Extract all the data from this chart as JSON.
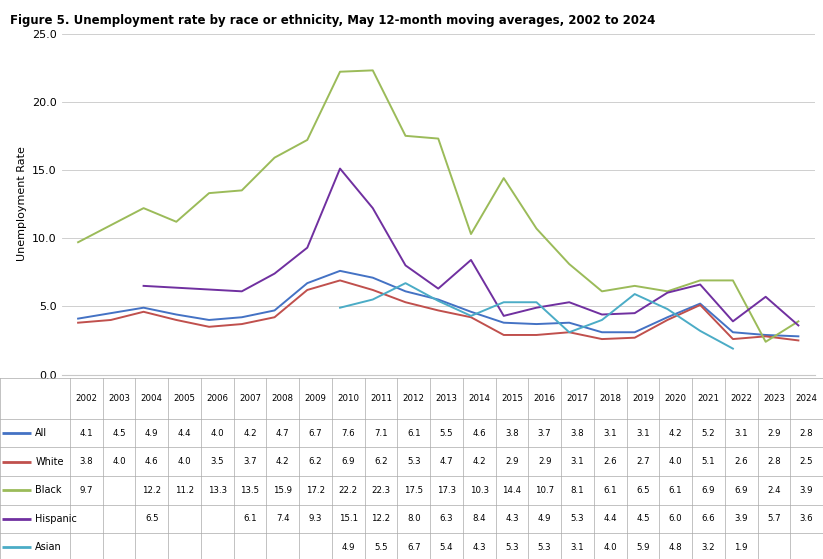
{
  "title": "Figure 5. Unemployment rate by race or ethnicity, May 12-month moving averages, 2002 to 2024",
  "ylabel": "Unemployment Rate",
  "years": [
    2002,
    2003,
    2004,
    2005,
    2006,
    2007,
    2008,
    2009,
    2010,
    2011,
    2012,
    2013,
    2014,
    2015,
    2016,
    2017,
    2018,
    2019,
    2020,
    2021,
    2022,
    2023,
    2024
  ],
  "series": {
    "All": [
      4.1,
      4.5,
      4.9,
      4.4,
      4.0,
      4.2,
      4.7,
      6.7,
      7.6,
      7.1,
      6.1,
      5.5,
      4.6,
      3.8,
      3.7,
      3.8,
      3.1,
      3.1,
      4.2,
      5.2,
      3.1,
      2.9,
      2.8
    ],
    "White": [
      3.8,
      4.0,
      4.6,
      4.0,
      3.5,
      3.7,
      4.2,
      6.2,
      6.9,
      6.2,
      5.3,
      4.7,
      4.2,
      2.9,
      2.9,
      3.1,
      2.6,
      2.7,
      4.0,
      5.1,
      2.6,
      2.8,
      2.5
    ],
    "Black": [
      9.7,
      null,
      12.2,
      11.2,
      13.3,
      13.5,
      15.9,
      17.2,
      22.2,
      22.3,
      17.5,
      17.3,
      10.3,
      14.4,
      10.7,
      8.1,
      6.1,
      6.5,
      6.1,
      6.9,
      6.9,
      2.4,
      3.9
    ],
    "Hispanic": [
      null,
      null,
      6.5,
      null,
      null,
      6.1,
      7.4,
      9.3,
      15.1,
      12.2,
      8.0,
      6.3,
      8.4,
      4.3,
      4.9,
      5.3,
      4.4,
      4.5,
      6.0,
      6.6,
      3.9,
      5.7,
      3.6
    ],
    "Asian": [
      null,
      null,
      null,
      null,
      null,
      null,
      null,
      null,
      4.9,
      5.5,
      6.7,
      5.4,
      4.3,
      5.3,
      5.3,
      3.1,
      4.0,
      5.9,
      4.8,
      3.2,
      1.9,
      null,
      null
    ]
  },
  "colors": {
    "All": "#4472C4",
    "White": "#C0504D",
    "Black": "#9BBB59",
    "Hispanic": "#7030A0",
    "Asian": "#4BACC6"
  },
  "ylim": [
    0.0,
    25.0
  ],
  "yticks": [
    0.0,
    5.0,
    10.0,
    15.0,
    20.0,
    25.0
  ],
  "background_color": "#FFFFFF",
  "row_labels": [
    "All",
    "White",
    "Black",
    "Hispanic",
    "Asian"
  ],
  "table_data": {
    "All": [
      "4.1",
      "4.5",
      "4.9",
      "4.4",
      "4.0",
      "4.2",
      "4.7",
      "6.7",
      "7.6",
      "7.1",
      "6.1",
      "5.5",
      "4.6",
      "3.8",
      "3.7",
      "3.8",
      "3.1",
      "3.1",
      "4.2",
      "5.2",
      "3.1",
      "2.9",
      "2.8"
    ],
    "White": [
      "3.8",
      "4.0",
      "4.6",
      "4.0",
      "3.5",
      "3.7",
      "4.2",
      "6.2",
      "6.9",
      "6.2",
      "5.3",
      "4.7",
      "4.2",
      "2.9",
      "2.9",
      "3.1",
      "2.6",
      "2.7",
      "4.0",
      "5.1",
      "2.6",
      "2.8",
      "2.5"
    ],
    "Black": [
      "9.7",
      "",
      "12.2",
      "11.2",
      "13.3",
      "13.5",
      "15.9",
      "17.2",
      "22.2",
      "22.3",
      "17.5",
      "17.3",
      "10.3",
      "14.4",
      "10.7",
      "8.1",
      "6.1",
      "6.5",
      "6.1",
      "6.9",
      "6.9",
      "2.4",
      "3.9"
    ],
    "Hispanic": [
      "",
      "",
      "6.5",
      "",
      "",
      "6.1",
      "7.4",
      "9.3",
      "15.1",
      "12.2",
      "8.0",
      "6.3",
      "8.4",
      "4.3",
      "4.9",
      "5.3",
      "4.4",
      "4.5",
      "6.0",
      "6.6",
      "3.9",
      "5.7",
      "3.6"
    ],
    "Asian": [
      "",
      "",
      "",
      "",
      "",
      "",
      "",
      "",
      "4.9",
      "5.5",
      "6.7",
      "5.4",
      "4.3",
      "5.3",
      "5.3",
      "3.1",
      "4.0",
      "5.9",
      "4.8",
      "3.2",
      "1.9",
      "",
      ""
    ]
  }
}
